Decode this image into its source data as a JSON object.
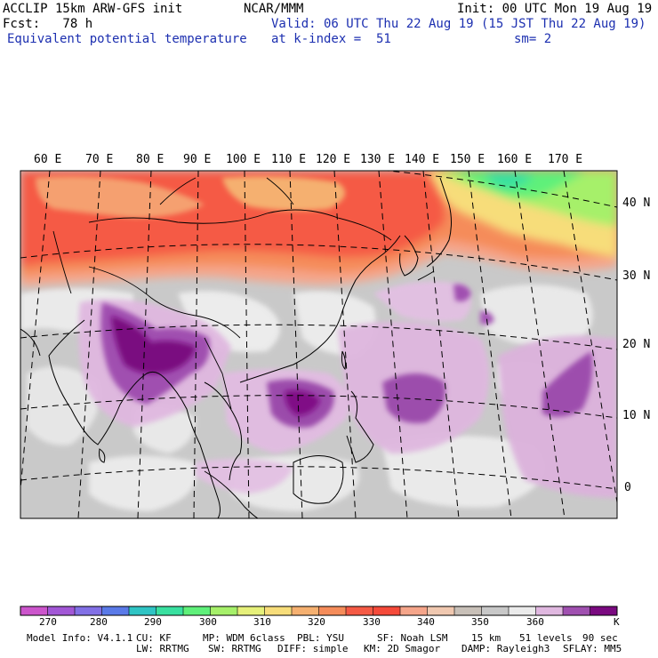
{
  "header": {
    "model_line": "ACCLIP 15km ARW-GFS init",
    "org": "NCAR/MMM",
    "init": "Init: 00 UTC Mon 19 Aug 19",
    "fcst": "Fcst:   78 h",
    "valid": "Valid: 06 UTC Thu 22 Aug 19 (15 JST Thu 22 Aug 19)",
    "field": "Equivalent potential temperature",
    "level": "at k-index =  51",
    "smooth": "sm= 2"
  },
  "map": {
    "lon_labels": [
      "60 E",
      "70 E",
      "80 E",
      "90 E",
      "100 E",
      "110 E",
      "120 E",
      "130 E",
      "140 E",
      "150 E",
      "160 E",
      "170 E"
    ],
    "lat_labels": [
      "40 N",
      "30 N",
      "20 N",
      "10 N",
      "0"
    ]
  },
  "colorbar": {
    "colors": [
      "#cc55cc",
      "#a257d6",
      "#8270e6",
      "#5a7ae8",
      "#2fc4c4",
      "#39e0a0",
      "#5ff07a",
      "#a6f06a",
      "#e6f07a",
      "#f7dd7a",
      "#f5b070",
      "#f58c5a",
      "#f55a45",
      "#f54a3a",
      "#f5a58a",
      "#f0c8b0",
      "#c8c0b8",
      "#c8c8c8",
      "#ebebeb",
      "#e0b8e0",
      "#a050b0",
      "#7a0a80"
    ],
    "labels": [
      "270",
      "280",
      "290",
      "300",
      "310",
      "320",
      "330",
      "340",
      "350",
      "360"
    ],
    "unit": "K"
  },
  "footer": {
    "line1": [
      "Model Info: V4.1.1",
      "CU: KF",
      "MP: WDM 6class",
      "PBL: YSU",
      "SF: Noah LSM",
      "15 km",
      "51 levels",
      "90 sec"
    ],
    "line2": [
      "LW: RRTMG",
      "SW: RRTMG",
      "DIFF: simple",
      "KM: 2D Smagor",
      "DAMP: Rayleigh3",
      "SFLAY: MM5"
    ]
  }
}
